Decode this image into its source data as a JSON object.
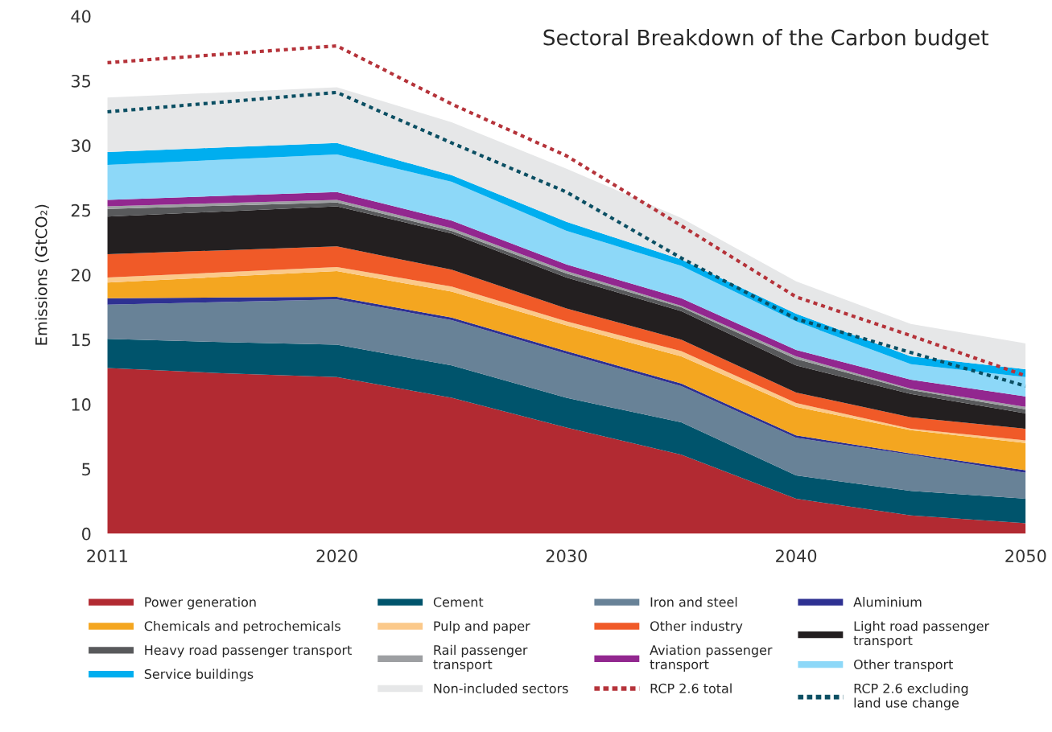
{
  "chart_data": {
    "type": "area",
    "stacked": true,
    "title": "Sectoral Breakdown of the Carbon budget",
    "ylabel": "Emissions (GtCO₂)",
    "categories": [
      "2011",
      null,
      "2020",
      null,
      "2030",
      null,
      "2040",
      null,
      "2050"
    ],
    "ylim": [
      0,
      40
    ],
    "yticks": [
      0,
      5,
      10,
      15,
      20,
      25,
      30,
      35,
      40
    ],
    "grid": false,
    "legend": "bottom",
    "series": [
      {
        "name": "Power generation",
        "color": "#b22a32",
        "values": [
          12.8,
          12.4,
          12.1,
          10.5,
          8.2,
          6.1,
          2.7,
          1.4,
          0.8
        ]
      },
      {
        "name": "Cement",
        "color": "#00546c",
        "values": [
          2.25,
          2.4,
          2.5,
          2.5,
          2.3,
          2.5,
          1.8,
          1.9,
          1.9
        ]
      },
      {
        "name": "Iron and steel",
        "color": "#688297",
        "values": [
          2.65,
          3.1,
          3.5,
          3.5,
          3.4,
          2.8,
          2.9,
          2.8,
          2.0
        ]
      },
      {
        "name": "Aluminium",
        "color": "#2e3192",
        "values": [
          0.5,
          0.35,
          0.2,
          0.2,
          0.2,
          0.2,
          0.2,
          0.1,
          0.2
        ]
      },
      {
        "name": "Chemicals and petrochemicals",
        "color": "#f4a620",
        "values": [
          1.2,
          1.6,
          2.0,
          2.0,
          2.0,
          2.1,
          2.2,
          1.8,
          2.1
        ]
      },
      {
        "name": "Pulp and paper",
        "color": "#fbc98a",
        "values": [
          0.4,
          0.35,
          0.3,
          0.4,
          0.3,
          0.4,
          0.3,
          0.1,
          0.2
        ]
      },
      {
        "name": "Other industry",
        "color": "#f05a28",
        "values": [
          1.8,
          1.7,
          1.6,
          1.3,
          1.0,
          0.9,
          0.8,
          0.9,
          0.9
        ]
      },
      {
        "name": "Light road passenger\ntransport",
        "color": "#231f20",
        "values": [
          2.9,
          3.0,
          3.1,
          2.8,
          2.4,
          2.2,
          2.1,
          1.8,
          1.2
        ]
      },
      {
        "name": "Heavy road passenger transport",
        "color": "#58595b",
        "values": [
          0.6,
          0.45,
          0.3,
          0.2,
          0.3,
          0.3,
          0.5,
          0.3,
          0.3
        ]
      },
      {
        "name": "Rail passenger\ntransport",
        "color": "#9d9fa2",
        "values": [
          0.2,
          0.2,
          0.2,
          0.2,
          0.2,
          0.1,
          0.2,
          0.1,
          0.2
        ]
      },
      {
        "name": "Aviation passenger\ntransport",
        "color": "#92278f",
        "values": [
          0.5,
          0.55,
          0.6,
          0.6,
          0.5,
          0.6,
          0.5,
          0.7,
          0.8
        ]
      },
      {
        "name": "Other transport",
        "color": "#8dd8f8",
        "values": [
          2.7,
          2.8,
          2.9,
          3.0,
          2.6,
          2.5,
          2.2,
          1.2,
          1.5
        ]
      },
      {
        "name": "Service buildings",
        "color": "#00aeef",
        "values": [
          1.0,
          0.95,
          0.9,
          0.5,
          0.7,
          0.5,
          0.6,
          0.6,
          0.6
        ]
      },
      {
        "name": "Non-included sectors",
        "color": "#e6e7e8",
        "values": [
          4.2,
          4.25,
          4.3,
          4.1,
          4.1,
          3.2,
          2.5,
          2.5,
          2.0
        ]
      },
      {
        "name": "RCP 2.6 total",
        "type": "line",
        "line_style": "dotted",
        "color": "#b5333a",
        "values": [
          36.4,
          37.05,
          37.7,
          33.2,
          29.2,
          23.8,
          18.3,
          15.3,
          12.2
        ]
      },
      {
        "name": "RCP 2.6 excluding\nland use change",
        "type": "line",
        "line_style": "dotted",
        "color": "#0b4f63",
        "values": [
          32.6,
          33.35,
          34.1,
          30.2,
          26.4,
          21.3,
          16.6,
          14.0,
          11.4
        ]
      }
    ]
  }
}
